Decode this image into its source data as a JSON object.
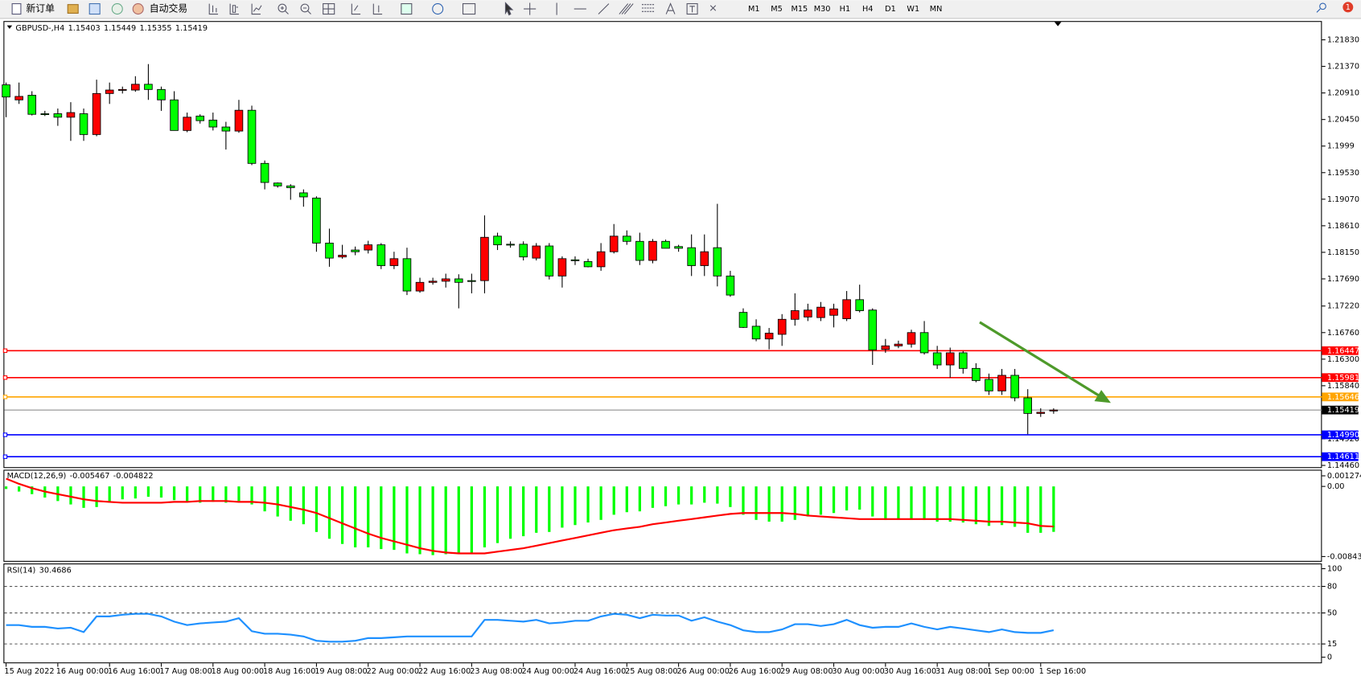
{
  "toolbar": {
    "new_order": "新订单",
    "auto_trading": "自动交易",
    "timeframes": [
      "M1",
      "M5",
      "M15",
      "M30",
      "H1",
      "H4",
      "D1",
      "W1",
      "MN"
    ],
    "notifications": "1"
  },
  "chart_data": [
    {
      "type": "candlestick",
      "title": "GBPUSD-,H4",
      "up_color": "#ff0000",
      "down_color": "#00ff00",
      "categories": [
        "15 Aug 2022",
        null,
        null,
        null,
        "16 Aug 00:00",
        null,
        null,
        null,
        "16 Aug 16:00",
        null,
        null,
        null,
        "17 Aug 08:00",
        null,
        null,
        null,
        "18 Aug 00:00",
        null,
        null,
        null,
        "18 Aug 16:00",
        null,
        null,
        null,
        "19 Aug 08:00",
        null,
        null,
        null,
        "22 Aug 00:00",
        null,
        null,
        null,
        "22 Aug 16:00",
        null,
        null,
        null,
        "23 Aug 08:00",
        null,
        null,
        null,
        "24 Aug 00:00",
        null,
        null,
        null,
        "24 Aug 16:00",
        null,
        null,
        null,
        "25 Aug 08:00",
        null,
        null,
        null,
        "26 Aug 00:00",
        null,
        null,
        null,
        "26 Aug 16:00",
        null,
        null,
        null,
        "29 Aug 08:00",
        null,
        null,
        null,
        "30 Aug 00:00",
        null,
        null,
        null,
        "30 Aug 16:00",
        null,
        null,
        null,
        "31 Aug 08:00",
        null,
        null,
        null,
        "1 Sep 00:00",
        null,
        null,
        null,
        "1 Sep 16:00",
        null
      ],
      "ohlc": [
        [
          1.2105,
          1.2109,
          1.2049,
          1.2084
        ],
        [
          1.2079,
          1.2109,
          1.2072,
          1.2085
        ],
        [
          1.2087,
          1.2094,
          1.2052,
          1.2054
        ],
        [
          1.2055,
          1.206,
          1.2051,
          1.2054
        ],
        [
          1.2055,
          1.2064,
          1.2034,
          1.2049
        ],
        [
          1.2049,
          1.2075,
          1.2008,
          1.2057
        ],
        [
          1.2055,
          1.2064,
          1.2008,
          1.2019
        ],
        [
          1.2019,
          1.2114,
          1.2016,
          1.209
        ],
        [
          1.209,
          1.2109,
          1.2072,
          1.2096
        ],
        [
          1.2096,
          1.2102,
          1.209,
          1.2097
        ],
        [
          1.2096,
          1.212,
          1.2093,
          1.2106
        ],
        [
          1.2106,
          1.2141,
          1.2079,
          1.2097
        ],
        [
          1.2097,
          1.2102,
          1.206,
          1.2079
        ],
        [
          1.2079,
          1.2094,
          1.2026,
          1.2026
        ],
        [
          1.2026,
          1.2057,
          1.2023,
          1.2049
        ],
        [
          1.2051,
          1.2054,
          1.2038,
          1.2043
        ],
        [
          1.2044,
          1.2057,
          1.2026,
          1.2032
        ],
        [
          1.2032,
          1.2041,
          1.1993,
          1.2025
        ],
        [
          1.2025,
          1.2079,
          1.2022,
          1.2061
        ],
        [
          1.2061,
          1.2069,
          1.1966,
          1.1969
        ],
        [
          1.1969,
          1.1974,
          1.1924,
          1.1936
        ],
        [
          1.1935,
          1.1936,
          1.1927,
          1.193
        ],
        [
          1.193,
          1.1933,
          1.1906,
          1.1927
        ],
        [
          1.1918,
          1.1924,
          1.1894,
          1.1911
        ],
        [
          1.1909,
          1.1912,
          1.1816,
          1.1831
        ],
        [
          1.1831,
          1.1856,
          1.179,
          1.1805
        ],
        [
          1.1807,
          1.1828,
          1.1804,
          1.181
        ],
        [
          1.1819,
          1.1825,
          1.181,
          1.1816
        ],
        [
          1.1819,
          1.1835,
          1.1813,
          1.1828
        ],
        [
          1.1828,
          1.1831,
          1.1786,
          1.1792
        ],
        [
          1.1792,
          1.1816,
          1.1786,
          1.1804
        ],
        [
          1.1804,
          1.1823,
          1.1741,
          1.1748
        ],
        [
          1.1748,
          1.1771,
          1.1745,
          1.1763
        ],
        [
          1.1763,
          1.1771,
          1.1759,
          1.1765
        ],
        [
          1.1765,
          1.1778,
          1.1754,
          1.1769
        ],
        [
          1.1769,
          1.1777,
          1.1718,
          1.1763
        ],
        [
          1.1766,
          1.1778,
          1.1744,
          1.1765
        ],
        [
          1.1766,
          1.1879,
          1.1744,
          1.1841
        ],
        [
          1.1843,
          1.1849,
          1.1819,
          1.1828
        ],
        [
          1.1829,
          1.1834,
          1.1823,
          1.1828
        ],
        [
          1.1829,
          1.1834,
          1.1801,
          1.1807
        ],
        [
          1.1805,
          1.1831,
          1.1801,
          1.1826
        ],
        [
          1.1826,
          1.1831,
          1.1768,
          1.1774
        ],
        [
          1.1774,
          1.1808,
          1.1754,
          1.1804
        ],
        [
          1.1802,
          1.1808,
          1.1793,
          1.1801
        ],
        [
          1.1799,
          1.1804,
          1.1789,
          1.179
        ],
        [
          1.179,
          1.1831,
          1.1783,
          1.1816
        ],
        [
          1.1816,
          1.1864,
          1.1813,
          1.1843
        ],
        [
          1.1843,
          1.1853,
          1.1828,
          1.1834
        ],
        [
          1.1834,
          1.1849,
          1.1793,
          1.1801
        ],
        [
          1.1801,
          1.1838,
          1.1796,
          1.1834
        ],
        [
          1.1834,
          1.1837,
          1.1822,
          1.1822
        ],
        [
          1.1825,
          1.1828,
          1.1816,
          1.1822
        ],
        [
          1.1823,
          1.1846,
          1.1774,
          1.1792
        ],
        [
          1.1792,
          1.1846,
          1.1774,
          1.1816
        ],
        [
          1.1823,
          1.1899,
          1.1756,
          1.1774
        ],
        [
          1.1774,
          1.1783,
          1.1738,
          1.1741
        ],
        [
          1.1711,
          1.1718,
          1.1684,
          1.1685
        ],
        [
          1.1687,
          1.1699,
          1.1661,
          1.1665
        ],
        [
          1.1665,
          1.1684,
          1.1647,
          1.1675
        ],
        [
          1.1673,
          1.1708,
          1.1653,
          1.1699
        ],
        [
          1.1699,
          1.1744,
          1.1688,
          1.1714
        ],
        [
          1.1703,
          1.1726,
          1.1696,
          1.1715
        ],
        [
          1.1702,
          1.1729,
          1.1696,
          1.172
        ],
        [
          1.1706,
          1.1726,
          1.1685,
          1.1717
        ],
        [
          1.17,
          1.1748,
          1.1696,
          1.1733
        ],
        [
          1.1733,
          1.1759,
          1.1711,
          1.1714
        ],
        [
          1.1715,
          1.1718,
          1.162,
          1.1646
        ],
        [
          1.1647,
          1.1665,
          1.1641,
          1.1653
        ],
        [
          1.1653,
          1.1662,
          1.1649,
          1.1656
        ],
        [
          1.1656,
          1.1681,
          1.165,
          1.1676
        ],
        [
          1.1676,
          1.1696,
          1.1638,
          1.1641
        ],
        [
          1.1641,
          1.1653,
          1.1613,
          1.162
        ],
        [
          1.162,
          1.165,
          1.1598,
          1.1641
        ],
        [
          1.1641,
          1.1644,
          1.1605,
          1.1614
        ],
        [
          1.1614,
          1.1623,
          1.159,
          1.1593
        ],
        [
          1.1595,
          1.1605,
          1.1568,
          1.1575
        ],
        [
          1.1575,
          1.1613,
          1.1568,
          1.1602
        ],
        [
          1.1602,
          1.1613,
          1.1557,
          1.1563
        ],
        [
          1.1563,
          1.1578,
          1.15,
          1.1536
        ],
        [
          1.1536,
          1.1545,
          1.153,
          1.1538
        ],
        [
          1.15403,
          1.15449,
          1.15355,
          1.15419
        ]
      ],
      "ylim": [
        1.1443,
        1.2214
      ],
      "yticks": [
        {
          "value": 1.2183,
          "label": "1.21830"
        },
        {
          "value": 1.2137,
          "label": "1.21370"
        },
        {
          "value": 1.2091,
          "label": "1.20910"
        },
        {
          "value": 1.2045,
          "label": "1.20450"
        },
        1.1999,
        {
          "value": 1.1953,
          "label": "1.19530"
        },
        {
          "value": 1.1907,
          "label": "1.19070"
        },
        {
          "value": 1.1861,
          "label": "1.18610"
        },
        {
          "value": 1.1815,
          "label": "1.18150"
        },
        {
          "value": 1.1769,
          "label": "1.17690"
        },
        {
          "value": 1.1722,
          "label": "1.17220"
        },
        {
          "value": 1.1676,
          "label": "1.16760"
        },
        {
          "value": 1.163,
          "label": "1.16300"
        },
        {
          "value": 1.1584,
          "label": "1.15840"
        },
        {
          "value": 1.1492,
          "label": "1.14920"
        },
        {
          "value": 1.1446,
          "label": "1.14460"
        }
      ],
      "levels": [
        {
          "price": 1.16447,
          "color": "#ff0000"
        },
        {
          "price": 1.15981,
          "color": "#ff0000"
        },
        {
          "price": 1.15646,
          "color": "#ffa500"
        },
        {
          "price": 1.1499,
          "label": "1.14990",
          "color": "#0000ff"
        },
        {
          "price": 1.14611,
          "color": "#0000ff"
        }
      ],
      "bid_color": "#808080"
    },
    {
      "type": "macd",
      "title": "MACD(12,26,9)",
      "series": [
        {
          "color": "#00ff00",
          "values": [
            -0.00031,
            -0.00062,
            -0.00093,
            -0.00134,
            -0.00176,
            -0.00217,
            -0.00258,
            -0.00248,
            -0.00196,
            -0.00155,
            -0.00145,
            -0.00124,
            -0.00134,
            -0.00165,
            -0.00186,
            -0.00196,
            -0.00186,
            -0.00196,
            -0.00176,
            -0.00217,
            -0.003,
            -0.00362,
            -0.00413,
            -0.00455,
            -0.00548,
            -0.0063,
            -0.00692,
            -0.00733,
            -0.00733,
            -0.00754,
            -0.00764,
            -0.00806,
            -0.00816,
            -0.00826,
            -0.00816,
            -0.00816,
            -0.00806,
            -0.00733,
            -0.00682,
            -0.0063,
            -0.00599,
            -0.00558,
            -0.00548,
            -0.00496,
            -0.00465,
            -0.00434,
            -0.00403,
            -0.00341,
            -0.0031,
            -0.003,
            -0.00258,
            -0.00238,
            -0.00217,
            -0.00217,
            -0.00196,
            -0.00207,
            -0.00248,
            -0.00341,
            -0.00403,
            -0.00424,
            -0.00424,
            -0.00403,
            -0.00362,
            -0.00341,
            -0.0032,
            -0.00289,
            -0.00279,
            -0.00362,
            -0.00403,
            -0.00393,
            -0.00393,
            -0.00403,
            -0.00424,
            -0.00424,
            -0.00434,
            -0.00455,
            -0.00475,
            -0.00465,
            -0.00486,
            -0.00558,
            -0.00558,
            -0.005467
          ]
        },
        {
          "color": "#ff0000",
          "values": [
            0.00093,
            0.00031,
            -0.00021,
            -0.00062,
            -0.00093,
            -0.00124,
            -0.00155,
            -0.00176,
            -0.00186,
            -0.00196,
            -0.00196,
            -0.00196,
            -0.00196,
            -0.00186,
            -0.00186,
            -0.00176,
            -0.00176,
            -0.00176,
            -0.00186,
            -0.00186,
            -0.00196,
            -0.00217,
            -0.00248,
            -0.00279,
            -0.0032,
            -0.00382,
            -0.00444,
            -0.00506,
            -0.00568,
            -0.0062,
            -0.00661,
            -0.00702,
            -0.00744,
            -0.00775,
            -0.00795,
            -0.00806,
            -0.00806,
            -0.00806,
            -0.00785,
            -0.00764,
            -0.00744,
            -0.00713,
            -0.00682,
            -0.00651,
            -0.0062,
            -0.00589,
            -0.00558,
            -0.00527,
            -0.00506,
            -0.00486,
            -0.00455,
            -0.00434,
            -0.00413,
            -0.00393,
            -0.00372,
            -0.00351,
            -0.00331,
            -0.0032,
            -0.0032,
            -0.0032,
            -0.0032,
            -0.00331,
            -0.00351,
            -0.00362,
            -0.00372,
            -0.00382,
            -0.00393,
            -0.00393,
            -0.00393,
            -0.00393,
            -0.00393,
            -0.00393,
            -0.00393,
            -0.00393,
            -0.00403,
            -0.00413,
            -0.00424,
            -0.00424,
            -0.00434,
            -0.00444,
            -0.00475,
            -0.004822
          ]
        }
      ],
      "ylim": [
        -0.008437,
        0.001274
      ],
      "yticks": [
        -0.008437,
        {
          "value": 0,
          "label": "0.00"
        },
        0.001274
      ]
    },
    {
      "type": "line",
      "title": "RSI(14)",
      "color": "#1e90ff",
      "values": [
        36.3,
        36.3,
        34.3,
        34.3,
        32.4,
        33.3,
        28.4,
        46.1,
        46.1,
        48.0,
        49.0,
        49.0,
        46.1,
        40.2,
        36.3,
        38.2,
        39.2,
        40.2,
        44.1,
        29.4,
        26.5,
        26.5,
        25.5,
        23.5,
        18.6,
        17.6,
        17.6,
        18.6,
        21.6,
        21.6,
        22.5,
        23.5,
        23.5,
        23.5,
        23.5,
        23.5,
        23.5,
        42.2,
        42.2,
        41.2,
        40.2,
        42.2,
        38.2,
        39.2,
        41.2,
        41.2,
        46.1,
        49.0,
        48.0,
        44.1,
        48.0,
        47.1,
        47.1,
        41.2,
        45.1,
        40.2,
        36.3,
        30.4,
        28.4,
        28.4,
        31.4,
        37.3,
        37.3,
        35.3,
        37.3,
        42.2,
        36.3,
        33.3,
        34.3,
        34.3,
        38.2,
        34.3,
        31.4,
        34.3,
        32.4,
        30.4,
        28.4,
        31.4,
        28.4,
        27.5,
        27.5,
        30.4686
      ],
      "ylim": [
        0,
        100
      ],
      "yticks": [
        0,
        15,
        50,
        80,
        100
      ]
    }
  ]
}
